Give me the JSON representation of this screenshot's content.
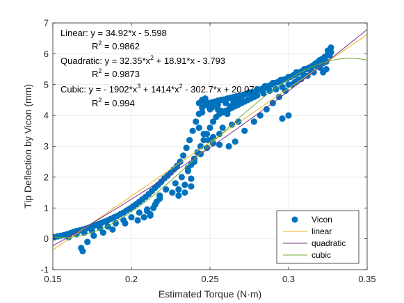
{
  "chart_data": {
    "type": "scatter",
    "xlabel": "Estimated Torque (N·m)",
    "ylabel": "Tip Deflection by Vicon (mm)",
    "xlim": [
      0.15,
      0.35
    ],
    "ylim": [
      -1,
      7
    ],
    "xticks": [
      0.15,
      0.2,
      0.25,
      0.3,
      0.35
    ],
    "xtick_labels": [
      "0.15",
      "0.2",
      "0.25",
      "0.3",
      "0.35"
    ],
    "yticks": [
      -1,
      0,
      1,
      2,
      3,
      4,
      5,
      6,
      7
    ],
    "ytick_labels": [
      "-1",
      "0",
      "1",
      "2",
      "3",
      "4",
      "5",
      "6",
      "7"
    ],
    "grid": true,
    "legend_position": "bottom-right",
    "legend": [
      "Vicon",
      "linear",
      "quadratic",
      "cubic"
    ],
    "colors": {
      "Vicon": "#0072BD",
      "linear": "#EDB120",
      "quadratic": "#7E2F8E",
      "cubic": "#77AC30"
    },
    "annotations": {
      "linear_label": "Linear:",
      "linear_eq": "y = 34.92*x - 5.598",
      "linear_r2": "= 0.9862",
      "quadratic_label": "Quadratic:",
      "quadratic_eq_a": "y = 32.35*x",
      "quadratic_eq_b": "+ 18.91*x - 3.793",
      "quadratic_r2": "= 0.9873",
      "cubic_label": "Cubic:",
      "cubic_eq_a": "y = - 1902*x",
      "cubic_eq_b": "+ 1414*x",
      "cubic_eq_c": "- 302.7*x + 20.07",
      "cubic_r2": "= 0.994",
      "r": "R",
      "sup2": "2",
      "sup3": "3"
    },
    "fits": {
      "linear": [
        34.92,
        -5.598
      ],
      "quadratic": [
        32.35,
        18.91,
        -3.793
      ],
      "cubic": [
        -1902,
        1414,
        -302.7,
        20.07
      ]
    },
    "fit_range": [
      0.15,
      0.35
    ],
    "series": [
      {
        "name": "Vicon",
        "x": [
          0.151,
          0.153,
          0.155,
          0.157,
          0.159,
          0.161,
          0.163,
          0.165,
          0.167,
          0.169,
          0.171,
          0.173,
          0.175,
          0.177,
          0.179,
          0.181,
          0.183,
          0.185,
          0.187,
          0.189,
          0.191,
          0.193,
          0.195,
          0.197,
          0.199,
          0.201,
          0.203,
          0.205,
          0.207,
          0.209,
          0.211,
          0.213,
          0.215,
          0.217,
          0.219,
          0.221,
          0.223,
          0.225,
          0.227,
          0.229,
          0.231,
          0.233,
          0.235,
          0.237,
          0.239,
          0.241,
          0.243,
          0.245,
          0.247,
          0.249,
          0.251,
          0.253,
          0.255,
          0.257,
          0.259,
          0.261,
          0.263,
          0.265,
          0.267,
          0.269,
          0.271,
          0.273,
          0.275,
          0.277,
          0.279,
          0.281,
          0.283,
          0.285,
          0.287,
          0.289,
          0.291,
          0.293,
          0.295,
          0.297,
          0.299,
          0.301,
          0.303,
          0.305,
          0.307,
          0.309,
          0.311,
          0.313,
          0.315,
          0.317,
          0.319,
          0.321,
          0.323,
          0.325,
          0.327,
          0.16,
          0.17,
          0.165,
          0.175,
          0.18,
          0.185,
          0.19,
          0.195,
          0.2,
          0.205,
          0.21,
          0.215,
          0.168,
          0.169,
          0.172,
          0.176,
          0.182,
          0.188,
          0.196,
          0.204,
          0.212,
          0.218,
          0.222,
          0.228,
          0.232,
          0.236,
          0.238,
          0.24,
          0.242,
          0.244,
          0.246,
          0.248,
          0.25,
          0.252,
          0.254,
          0.256,
          0.258,
          0.26,
          0.262,
          0.264,
          0.266,
          0.268,
          0.27,
          0.272,
          0.274,
          0.276,
          0.278,
          0.28,
          0.284,
          0.288,
          0.292,
          0.296,
          0.3,
          0.304,
          0.308,
          0.312,
          0.316,
          0.32,
          0.324,
          0.326,
          0.243,
          0.245,
          0.247,
          0.249,
          0.251,
          0.253,
          0.255,
          0.257,
          0.259,
          0.261,
          0.263,
          0.265,
          0.267,
          0.269,
          0.245,
          0.25,
          0.255,
          0.26,
          0.265,
          0.27,
          0.275,
          0.28,
          0.285,
          0.29,
          0.295,
          0.3,
          0.305,
          0.31,
          0.315,
          0.32,
          0.325,
          0.243,
          0.246,
          0.249,
          0.252,
          0.256,
          0.262,
          0.266,
          0.272,
          0.278,
          0.282,
          0.286,
          0.29,
          0.294,
          0.298,
          0.302,
          0.306,
          0.31,
          0.314,
          0.318,
          0.322,
          0.327,
          0.326,
          0.324,
          0.322,
          0.216,
          0.218,
          0.226,
          0.23,
          0.234,
          0.238,
          0.256,
          0.296,
          0.3,
          0.21,
          0.214,
          0.236,
          0.24,
          0.244,
          0.248,
          0.252,
          0.258,
          0.264,
          0.268,
          0.23,
          0.234,
          0.238,
          0.212,
          0.208
        ],
        "y": [
          0.05,
          0.08,
          0.1,
          0.12,
          0.15,
          0.18,
          0.22,
          0.25,
          0.27,
          0.3,
          0.33,
          0.36,
          0.4,
          0.44,
          0.48,
          0.52,
          0.56,
          0.6,
          0.65,
          0.7,
          0.74,
          0.8,
          0.85,
          0.92,
          0.98,
          1.05,
          1.12,
          1.2,
          1.28,
          1.36,
          1.45,
          1.55,
          1.65,
          1.75,
          1.85,
          1.96,
          2.05,
          2.15,
          2.25,
          2.36,
          2.5,
          2.7,
          2.95,
          3.2,
          3.5,
          3.8,
          4.05,
          4.25,
          4.35,
          4.4,
          4.42,
          4.45,
          4.48,
          4.5,
          4.52,
          4.55,
          4.57,
          4.6,
          4.62,
          4.64,
          4.66,
          4.7,
          4.72,
          4.75,
          4.78,
          4.82,
          4.86,
          4.9,
          4.95,
          5.0,
          5.05,
          5.08,
          5.12,
          5.16,
          5.2,
          5.25,
          5.3,
          5.35,
          5.4,
          5.45,
          5.5,
          5.55,
          5.6,
          5.68,
          5.75,
          5.82,
          5.9,
          5.98,
          6.05,
          0.05,
          0.2,
          0.15,
          0.25,
          0.35,
          0.4,
          0.5,
          0.6,
          0.7,
          0.85,
          0.95,
          1.1,
          -0.3,
          -0.4,
          -0.1,
          0.1,
          0.2,
          0.3,
          0.5,
          0.6,
          0.75,
          1.4,
          1.6,
          1.8,
          2.0,
          2.2,
          2.4,
          2.6,
          2.8,
          3.0,
          3.2,
          3.4,
          3.6,
          3.8,
          3.95,
          4.05,
          4.1,
          4.15,
          4.2,
          4.25,
          4.3,
          4.35,
          4.4,
          4.45,
          4.5,
          4.55,
          4.6,
          4.65,
          4.72,
          4.8,
          4.85,
          4.92,
          5.0,
          5.08,
          5.18,
          5.28,
          5.4,
          5.55,
          5.75,
          5.95,
          4.4,
          4.5,
          4.55,
          4.3,
          4.25,
          4.35,
          4.2,
          4.15,
          4.1,
          4.05,
          4.3,
          4.45,
          4.5,
          4.55,
          4.1,
          4.2,
          4.35,
          4.4,
          4.5,
          4.6,
          4.75,
          4.85,
          4.95,
          5.05,
          5.15,
          5.25,
          5.4,
          5.5,
          5.6,
          5.8,
          6.1,
          3.6,
          3.4,
          3.2,
          3.1,
          3.05,
          3.0,
          3.15,
          3.5,
          3.8,
          4.0,
          4.2,
          4.4,
          4.6,
          4.8,
          5.0,
          5.15,
          5.3,
          5.45,
          5.6,
          5.7,
          6.2,
          5.95,
          5.5,
          5.4,
          1.2,
          1.3,
          1.5,
          1.6,
          1.75,
          1.95,
          3.4,
          3.9,
          4.0,
          0.9,
          1.0,
          2.3,
          2.5,
          2.75,
          2.95,
          3.3,
          3.6,
          3.7,
          3.8,
          1.4,
          1.5,
          1.7,
          0.8,
          0.7
        ]
      }
    ]
  }
}
